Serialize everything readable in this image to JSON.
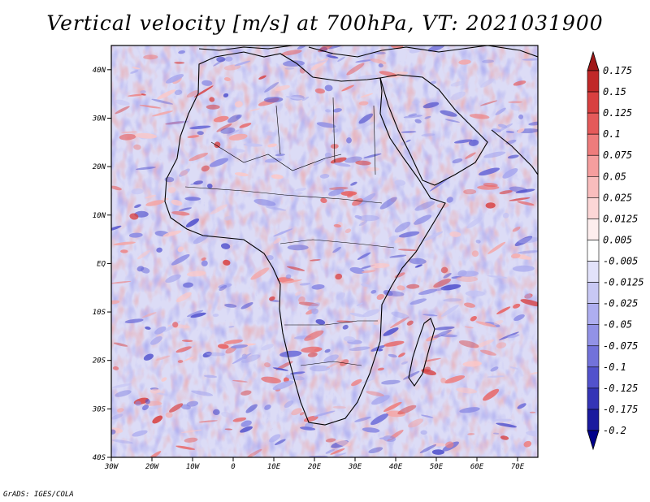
{
  "chart_data": {
    "type": "heatmap",
    "title": "Vertical velocity [m/s] at 700hPa, VT: 2021031900",
    "variable": "Vertical velocity",
    "units": "m/s",
    "level": "700hPa",
    "valid_time": "2021031900",
    "xlabel": "",
    "ylabel": "",
    "xlim": [
      -30,
      75
    ],
    "ylim": [
      -40,
      45
    ],
    "x_ticks": [
      {
        "value": -30,
        "label": "30W"
      },
      {
        "value": -20,
        "label": "20W"
      },
      {
        "value": -10,
        "label": "10W"
      },
      {
        "value": 0,
        "label": "0"
      },
      {
        "value": 10,
        "label": "10E"
      },
      {
        "value": 20,
        "label": "20E"
      },
      {
        "value": 30,
        "label": "30E"
      },
      {
        "value": 40,
        "label": "40E"
      },
      {
        "value": 50,
        "label": "50E"
      },
      {
        "value": 60,
        "label": "60E"
      },
      {
        "value": 70,
        "label": "70E"
      }
    ],
    "y_ticks": [
      {
        "value": -40,
        "label": "40S"
      },
      {
        "value": -30,
        "label": "30S"
      },
      {
        "value": -20,
        "label": "20S"
      },
      {
        "value": -10,
        "label": "10S"
      },
      {
        "value": 0,
        "label": "EQ"
      },
      {
        "value": 10,
        "label": "10N"
      },
      {
        "value": 20,
        "label": "20N"
      },
      {
        "value": 30,
        "label": "30N"
      },
      {
        "value": 40,
        "label": "40N"
      }
    ],
    "colorbar": {
      "labels": [
        "0.175",
        "0.15",
        "0.125",
        "0.1",
        "0.075",
        "0.05",
        "0.025",
        "0.0125",
        "0.005",
        "-0.005",
        "-0.0125",
        "-0.025",
        "-0.05",
        "-0.075",
        "-0.1",
        "-0.125",
        "-0.175",
        "-0.2"
      ],
      "colors": [
        "#a01818",
        "#c02828",
        "#d84040",
        "#e45a5a",
        "#ee7c7c",
        "#f59e9e",
        "#f9bdbd",
        "#fcd6d6",
        "#fdeeee",
        "#ffffff",
        "#e2e2fa",
        "#c8c8f4",
        "#aeaef0",
        "#9292e6",
        "#7272da",
        "#5252cc",
        "#3434b6",
        "#1a1a9e",
        "#00008a"
      ]
    }
  },
  "credit": "GrADS: IGES/COLA"
}
